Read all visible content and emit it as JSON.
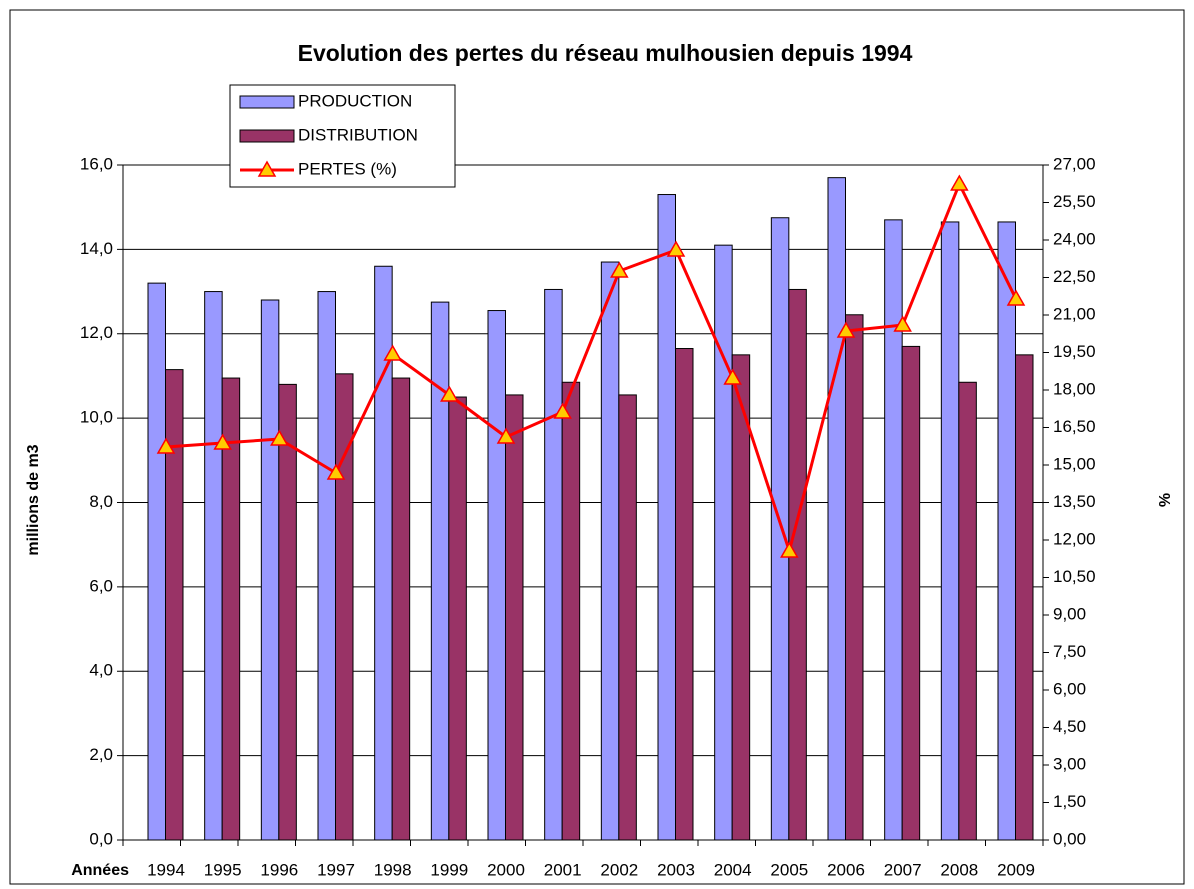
{
  "chart_data": {
    "type": "bar",
    "title": "Evolution des pertes du réseau mulhousien depuis 1994",
    "x_label": "Années",
    "y_label": "millions de m3",
    "y2_label": "%",
    "categories": [
      "1994",
      "1995",
      "1996",
      "1997",
      "1998",
      "1999",
      "2000",
      "2001",
      "2002",
      "2003",
      "2004",
      "2005",
      "2006",
      "2007",
      "2008",
      "2009"
    ],
    "series": [
      {
        "name": "PRODUCTION",
        "type": "bar",
        "color": "#9999ff",
        "values": [
          13.2,
          13.0,
          12.8,
          13.0,
          13.6,
          12.75,
          12.55,
          13.05,
          13.7,
          15.3,
          14.1,
          14.75,
          15.7,
          14.7,
          14.65,
          14.65
        ]
      },
      {
        "name": "DISTRIBUTION",
        "type": "bar",
        "color": "#993366",
        "values": [
          11.15,
          10.95,
          10.8,
          11.05,
          10.95,
          10.5,
          10.55,
          10.85,
          10.55,
          11.65,
          11.5,
          13.05,
          12.45,
          11.7,
          10.85,
          11.5
        ]
      },
      {
        "name": "PERTES (%)",
        "type": "line",
        "axis": "y2",
        "color": "#ff0000",
        "marker_color": "#ffcc00",
        "values": [
          15.72,
          15.88,
          16.04,
          14.68,
          19.44,
          17.8,
          16.12,
          17.12,
          22.76,
          23.6,
          18.48,
          11.56,
          20.36,
          20.6,
          26.24,
          21.64
        ]
      }
    ],
    "ylim": [
      0,
      16
    ],
    "yticks": [
      {
        "value": 0,
        "label": "0,0"
      },
      {
        "value": 2,
        "label": "2,0"
      },
      {
        "value": 4,
        "label": "4,0"
      },
      {
        "value": 6,
        "label": "6,0"
      },
      {
        "value": 8,
        "label": "8,0"
      },
      {
        "value": 10,
        "label": "10,0"
      },
      {
        "value": 12,
        "label": "12,0"
      },
      {
        "value": 14,
        "label": "14,0"
      },
      {
        "value": 16,
        "label": "16,0"
      }
    ],
    "y2lim": [
      0,
      27
    ],
    "y2ticks": [
      {
        "value": 0,
        "label": "0,00"
      },
      {
        "value": 1.5,
        "label": "1,50"
      },
      {
        "value": 3,
        "label": "3,00"
      },
      {
        "value": 4.5,
        "label": "4,50"
      },
      {
        "value": 6,
        "label": "6,00"
      },
      {
        "value": 7.5,
        "label": "7,50"
      },
      {
        "value": 9,
        "label": "9,00"
      },
      {
        "value": 10.5,
        "label": "10,50"
      },
      {
        "value": 12,
        "label": "12,00"
      },
      {
        "value": 13.5,
        "label": "13,50"
      },
      {
        "value": 15,
        "label": "15,00"
      },
      {
        "value": 16.5,
        "label": "16,50"
      },
      {
        "value": 18,
        "label": "18,00"
      },
      {
        "value": 19.5,
        "label": "19,50"
      },
      {
        "value": 21,
        "label": "21,00"
      },
      {
        "value": 22.5,
        "label": "22,50"
      },
      {
        "value": 24,
        "label": "24,00"
      },
      {
        "value": 25.5,
        "label": "25,50"
      },
      {
        "value": 27,
        "label": "27,00"
      }
    ],
    "grid": true
  }
}
